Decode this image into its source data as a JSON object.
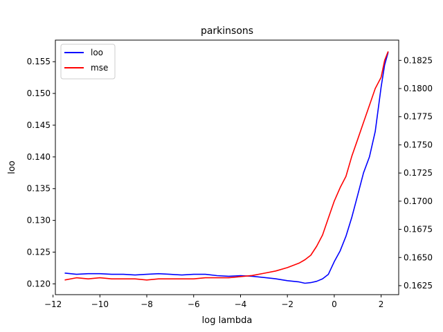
{
  "chart_data": {
    "type": "line",
    "title": "parkinsons",
    "xlabel": "log lambda",
    "ylabel": "loo",
    "ylabel_right": "",
    "xlim": [
      -11.9,
      2.75
    ],
    "ylim_left": [
      0.1183,
      0.1584
    ],
    "ylim_right": [
      0.1617,
      0.1843
    ],
    "x_ticks": [
      -12,
      -10,
      -8,
      -6,
      -4,
      -2,
      0,
      2
    ],
    "y_ticks_left": [
      0.12,
      0.125,
      0.13,
      0.135,
      0.14,
      0.145,
      0.15,
      0.155
    ],
    "y_ticks_right": [
      0.1625,
      0.165,
      0.1675,
      0.17,
      0.1725,
      0.175,
      0.1775,
      0.18,
      0.1825
    ],
    "x_tick_labels": [
      "−12",
      "−10",
      "−8",
      "−6",
      "−4",
      "−2",
      "0",
      "2"
    ],
    "y_tick_labels_left": [
      "0.120",
      "0.125",
      "0.130",
      "0.135",
      "0.140",
      "0.145",
      "0.150",
      "0.155"
    ],
    "y_tick_labels_right": [
      "0.1625",
      "0.1650",
      "0.1675",
      "0.1700",
      "0.1725",
      "0.1750",
      "0.1775",
      "0.1800",
      "0.1825"
    ],
    "legend": {
      "placement": "upper left",
      "entries": [
        "loo",
        "mse"
      ]
    },
    "grid": false,
    "series": [
      {
        "name": "loo",
        "axis": "left",
        "color": "#0000ff",
        "x": [
          -11.5,
          -11.0,
          -10.5,
          -10.0,
          -9.5,
          -9.0,
          -8.5,
          -8.0,
          -7.5,
          -7.0,
          -6.5,
          -6.0,
          -5.5,
          -5.0,
          -4.5,
          -4.0,
          -3.5,
          -3.0,
          -2.5,
          -2.0,
          -1.5,
          -1.25,
          -1.0,
          -0.75,
          -0.5,
          -0.25,
          0.0,
          0.25,
          0.5,
          0.75,
          1.0,
          1.25,
          1.5,
          1.75,
          2.0,
          2.15,
          2.3
        ],
        "y": [
          0.1217,
          0.1215,
          0.1216,
          0.1216,
          0.1215,
          0.1215,
          0.1214,
          0.1215,
          0.1216,
          0.1215,
          0.1214,
          0.1215,
          0.1215,
          0.1213,
          0.1212,
          0.1213,
          0.1212,
          0.121,
          0.1208,
          0.1205,
          0.1203,
          0.1201,
          0.1202,
          0.1204,
          0.1208,
          0.1215,
          0.1235,
          0.1252,
          0.1275,
          0.1305,
          0.134,
          0.1375,
          0.14,
          0.144,
          0.151,
          0.1545,
          0.1565
        ]
      },
      {
        "name": "mse",
        "axis": "right",
        "color": "#ff0000",
        "x": [
          -11.5,
          -11.0,
          -10.5,
          -10.0,
          -9.5,
          -9.0,
          -8.5,
          -8.0,
          -7.5,
          -7.0,
          -6.5,
          -6.0,
          -5.5,
          -5.0,
          -4.5,
          -4.0,
          -3.5,
          -3.0,
          -2.5,
          -2.0,
          -1.5,
          -1.25,
          -1.0,
          -0.75,
          -0.5,
          -0.25,
          0.0,
          0.25,
          0.5,
          0.75,
          1.0,
          1.25,
          1.5,
          1.75,
          2.0,
          2.15,
          2.3
        ],
        "y": [
          0.163,
          0.1632,
          0.1631,
          0.1632,
          0.1631,
          0.1631,
          0.1631,
          0.163,
          0.1631,
          0.1631,
          0.1631,
          0.1631,
          0.1632,
          0.1632,
          0.1632,
          0.1633,
          0.1634,
          0.1636,
          0.1638,
          0.1641,
          0.1645,
          0.1648,
          0.1652,
          0.166,
          0.167,
          0.1685,
          0.17,
          0.1712,
          0.1722,
          0.174,
          0.1755,
          0.177,
          0.1785,
          0.18,
          0.181,
          0.1825,
          0.1833
        ]
      }
    ]
  }
}
